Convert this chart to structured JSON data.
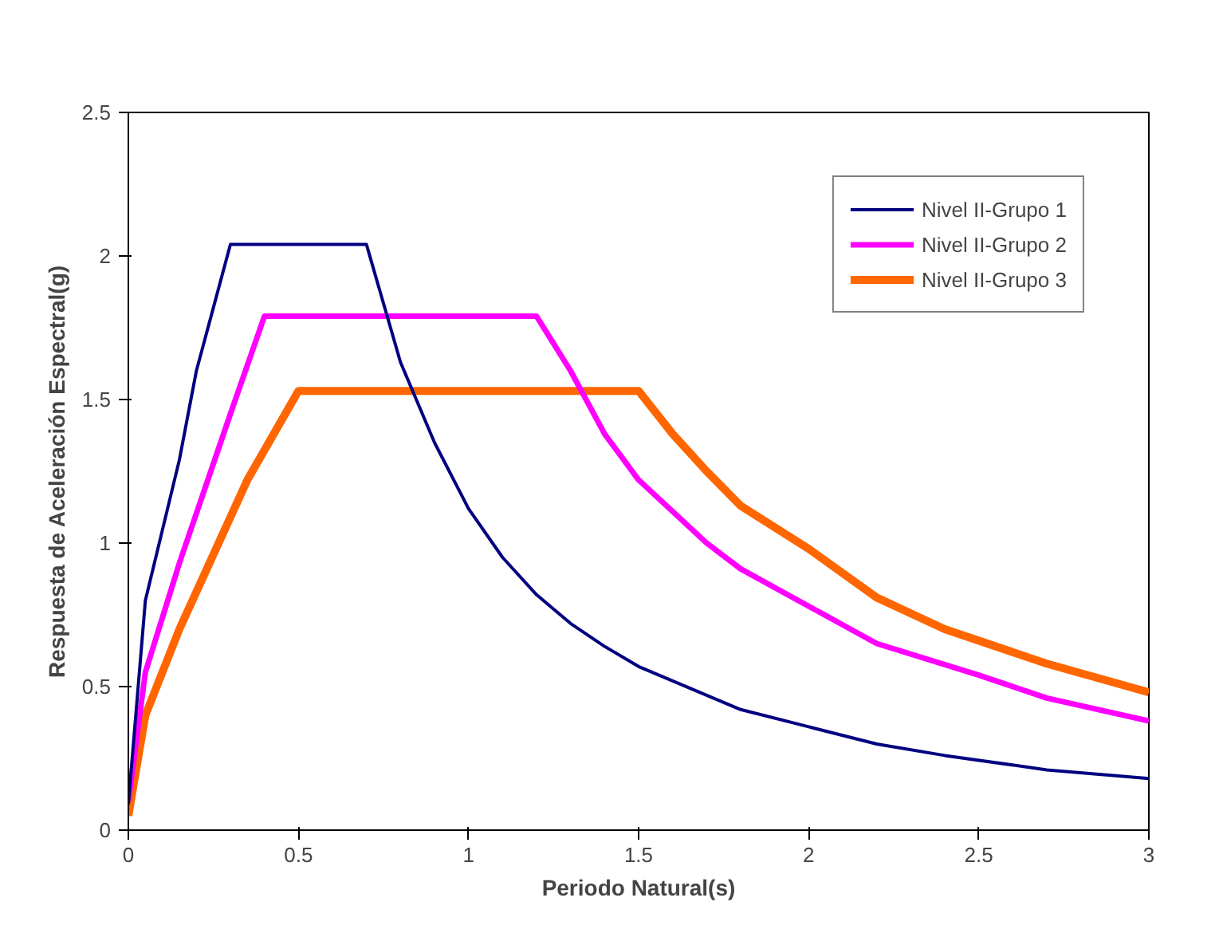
{
  "chart_data": {
    "type": "line",
    "xlabel": "Periodo Natural(s)",
    "ylabel": "Respuesta de Aceleración Espectral(g)",
    "xlim": [
      0,
      3
    ],
    "ylim": [
      0,
      2.5
    ],
    "xticks": [
      0,
      0.5,
      1,
      1.5,
      2,
      2.5,
      3
    ],
    "yticks": [
      0,
      0.5,
      1,
      1.5,
      2,
      2.5
    ],
    "grid": false,
    "legend": "top right",
    "marker": "none",
    "line_style": "solid",
    "series": [
      {
        "name": "Nivel II-Grupo 1",
        "color": "#000080",
        "x": [
          0,
          0.05,
          0.15,
          0.2,
          0.3,
          0.7,
          0.8,
          0.9,
          1.0,
          1.1,
          1.2,
          1.3,
          1.4,
          1.5,
          1.7,
          1.8,
          2.0,
          2.2,
          2.4,
          2.7,
          3.0
        ],
        "values": [
          0.09,
          0.8,
          1.29,
          1.6,
          2.04,
          2.04,
          1.63,
          1.35,
          1.12,
          0.95,
          0.82,
          0.72,
          0.64,
          0.57,
          0.47,
          0.42,
          0.36,
          0.3,
          0.26,
          0.21,
          0.18
        ]
      },
      {
        "name": "Nivel II-Grupo 2",
        "color": "#ff00ff",
        "x": [
          0,
          0.05,
          0.15,
          0.3,
          0.4,
          1.2,
          1.3,
          1.4,
          1.5,
          1.7,
          1.8,
          2.0,
          2.2,
          2.5,
          2.7,
          3.0
        ],
        "values": [
          0.1,
          0.55,
          0.93,
          1.45,
          1.79,
          1.79,
          1.6,
          1.38,
          1.22,
          1.0,
          0.91,
          0.78,
          0.65,
          0.54,
          0.46,
          0.38
        ]
      },
      {
        "name": "Nivel II-Grupo 3",
        "color": "#ff6600",
        "x": [
          0,
          0.05,
          0.15,
          0.35,
          0.5,
          1.5,
          1.6,
          1.7,
          1.8,
          2.0,
          2.2,
          2.4,
          2.7,
          3.0
        ],
        "values": [
          0.05,
          0.4,
          0.7,
          1.22,
          1.53,
          1.53,
          1.38,
          1.25,
          1.13,
          0.98,
          0.81,
          0.7,
          0.58,
          0.48
        ]
      }
    ]
  }
}
